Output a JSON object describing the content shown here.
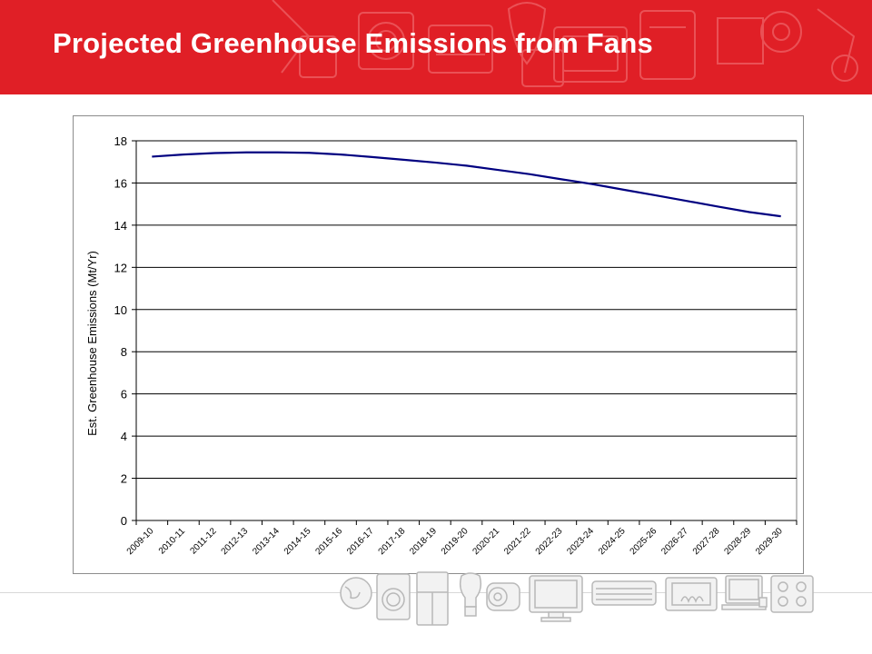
{
  "page": {
    "title": "Projected Greenhouse Emissions from Fans"
  },
  "colors": {
    "header_background": "#e01f26",
    "header_text": "#ffffff",
    "series_line": "#000080",
    "gridline": "#000000",
    "decor_icons": "#bdbdbd"
  },
  "decor": {
    "header_watermark_icons": [
      "appliance-outline-icons"
    ],
    "footer_icons": [
      "globe-icon",
      "washing-machine-icon",
      "refrigerator-icon",
      "light-bulb-icon",
      "motor-icon",
      "television-icon",
      "air-conditioner-icon",
      "heater-icon",
      "computer-icon",
      "cooktop-icon"
    ]
  },
  "chart_data": {
    "type": "line",
    "title": "",
    "xlabel": "",
    "ylabel": "Est. Greenhouse Emissions (Mt/Yr)",
    "ylim": [
      0,
      18
    ],
    "yticks": [
      0,
      2,
      4,
      6,
      8,
      10,
      12,
      14,
      16,
      18
    ],
    "grid": true,
    "legend": "none",
    "categories": [
      "2009-10",
      "2010-11",
      "2011-12",
      "2012-13",
      "2013-14",
      "2014-15",
      "2015-16",
      "2016-17",
      "2017-18",
      "2018-19",
      "2019-20",
      "2020-21",
      "2021-22",
      "2022-23",
      "2023-24",
      "2024-25",
      "2025-26",
      "2026-27",
      "2027-28",
      "2028-29",
      "2029-30"
    ],
    "series": [
      {
        "values": [
          17.25,
          17.35,
          17.42,
          17.45,
          17.45,
          17.43,
          17.35,
          17.23,
          17.1,
          16.97,
          16.82,
          16.62,
          16.42,
          16.18,
          15.95,
          15.68,
          15.42,
          15.15,
          14.88,
          14.62,
          14.42
        ]
      }
    ]
  }
}
